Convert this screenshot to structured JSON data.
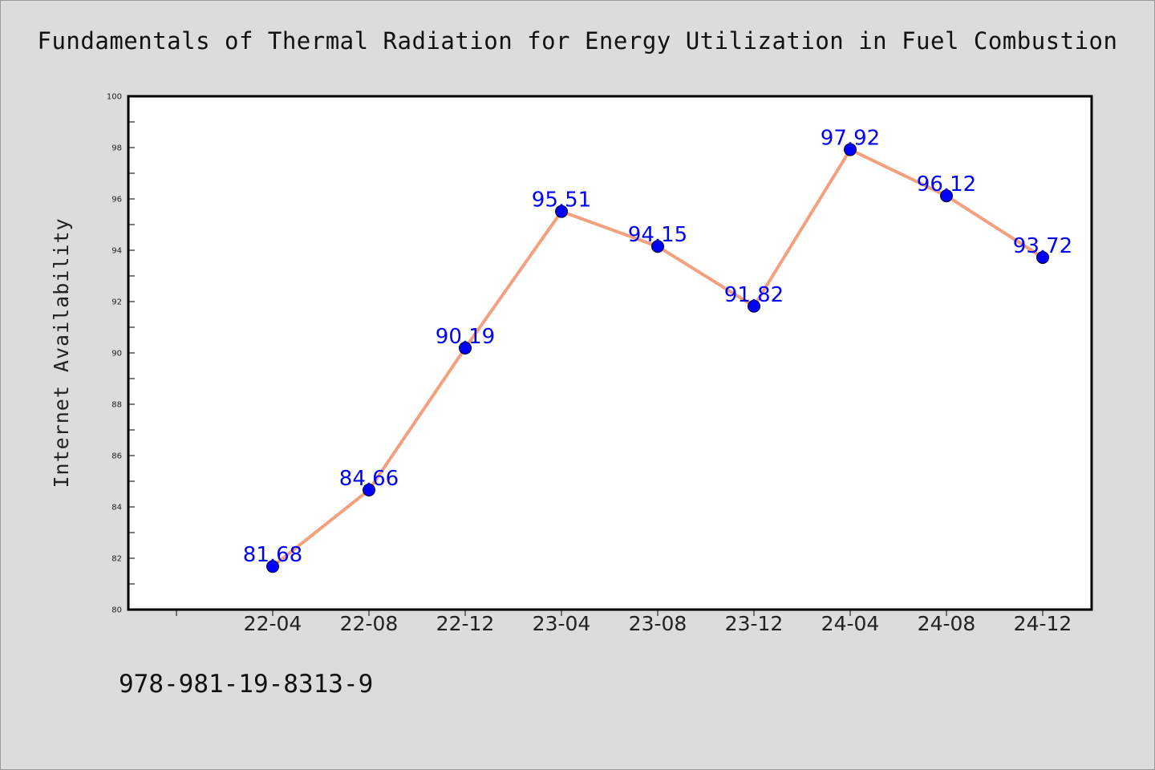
{
  "title": "Fundamentals of Thermal Radiation for Energy Utilization in Fuel Combustion",
  "isbn": "978-981-19-8313-9",
  "colors": {
    "background": "#dcdcdc",
    "plot_background": "#ffffff",
    "line": "#f4a07f",
    "marker": "#0000ff",
    "data_label": "#0000ff",
    "axis": "#000000"
  },
  "chart_data": {
    "type": "line",
    "title": "Fundamentals of Thermal Radiation for Energy Utilization in Fuel Combustion",
    "xlabel": "",
    "ylabel": "Internet Availability",
    "categories": [
      "22-04",
      "22-08",
      "22-12",
      "23-04",
      "23-08",
      "23-12",
      "24-04",
      "24-08",
      "24-12"
    ],
    "series": [
      {
        "values": [
          81.68,
          84.66,
          90.19,
          95.51,
          94.15,
          91.82,
          97.92,
          96.12,
          93.72
        ]
      }
    ],
    "data_labels": [
      "81.68",
      "84.66",
      "90.19",
      "95.51",
      "94.15",
      "91.82",
      "97.92",
      "96.12",
      "93.72"
    ],
    "ylim": [
      80,
      100
    ],
    "yticks": [
      80,
      82,
      84,
      86,
      88,
      90,
      92,
      94,
      96,
      98,
      100
    ],
    "grid": false,
    "legend": "none"
  }
}
